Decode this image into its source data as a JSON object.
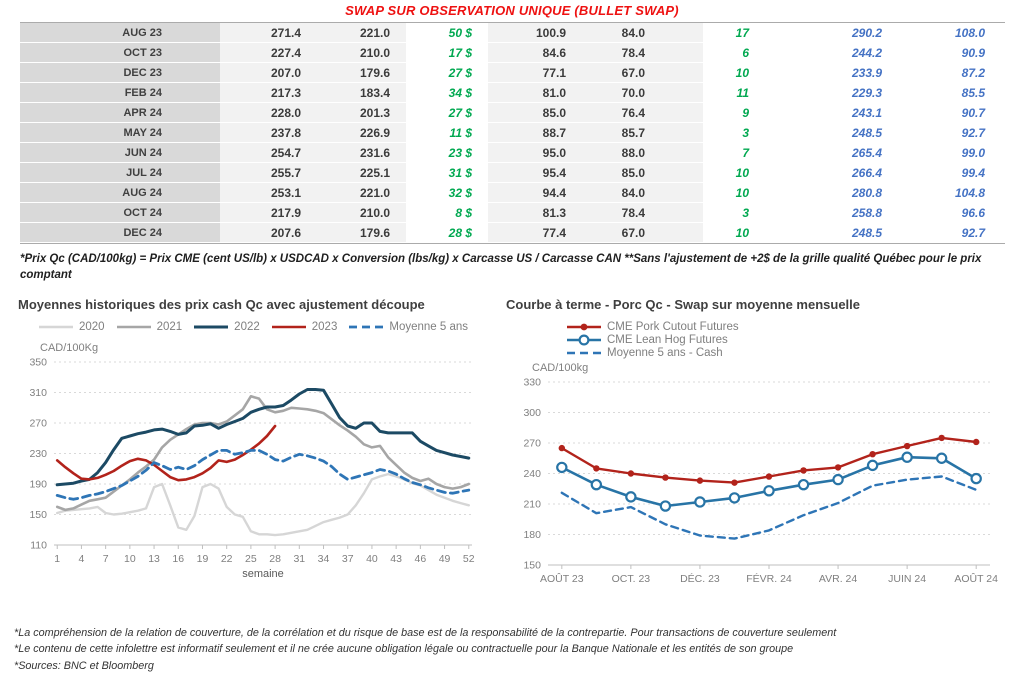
{
  "page": {
    "title": "SWAP SUR OBSERVATION UNIQUE (BULLET SWAP)",
    "table_note": "*Prix Qc (CAD/100kg) = Prix CME (cent US/lb) x USDCAD x Conversion (lbs/kg) x Carcasse US / Carcasse CAN **Sans l'ajustement de +2$ de la grille qualité Québec pour le prix comptant",
    "footer_lines": [
      "*La compréhension de la relation de couverture, de la corrélation et du risque de base est de la responsabilité de la contrepartie. Pour transactions de couverture seulement",
      "*Le contenu de cette infolettre est informatif seulement et il ne crée aucune obligation légale ou contractuelle pour la Banque Nationale et les entités de son groupe",
      "*Sources: BNC et Bloomberg"
    ]
  },
  "colors": {
    "title_red": "#ee1111",
    "table_green": "#00a850",
    "table_blue": "#4472c4",
    "month_band_gray": "#d9d9d9",
    "value_band_gray": "#f2f2f2"
  },
  "table": {
    "rows": [
      [
        "AUG 23",
        "271.4",
        "221.0",
        "50 $",
        "100.9",
        "84.0",
        "17",
        "290.2",
        "108.0"
      ],
      [
        "OCT 23",
        "227.4",
        "210.0",
        "17 $",
        "84.6",
        "78.4",
        "6",
        "244.2",
        "90.9"
      ],
      [
        "DEC 23",
        "207.0",
        "179.6",
        "27 $",
        "77.1",
        "67.0",
        "10",
        "233.9",
        "87.2"
      ],
      [
        "FEB 24",
        "217.3",
        "183.4",
        "34 $",
        "81.0",
        "70.0",
        "11",
        "229.3",
        "85.5"
      ],
      [
        "APR 24",
        "228.0",
        "201.3",
        "27 $",
        "85.0",
        "76.4",
        "9",
        "243.1",
        "90.7"
      ],
      [
        "MAY 24",
        "237.8",
        "226.9",
        "11 $",
        "88.7",
        "85.7",
        "3",
        "248.5",
        "92.7"
      ],
      [
        "JUN 24",
        "254.7",
        "231.6",
        "23 $",
        "95.0",
        "88.0",
        "7",
        "265.4",
        "99.0"
      ],
      [
        "JUL 24",
        "255.7",
        "225.1",
        "31 $",
        "95.4",
        "85.0",
        "10",
        "266.4",
        "99.4"
      ],
      [
        "AUG 24",
        "253.1",
        "221.0",
        "32 $",
        "94.4",
        "84.0",
        "10",
        "280.8",
        "104.8"
      ],
      [
        "OCT 24",
        "217.9",
        "210.0",
        "8 $",
        "81.3",
        "78.4",
        "3",
        "258.8",
        "96.6"
      ],
      [
        "DEC 24",
        "207.6",
        "179.6",
        "28 $",
        "77.4",
        "67.0",
        "10",
        "248.5",
        "92.7"
      ]
    ]
  },
  "chart_data": [
    {
      "type": "line",
      "title": "Moyennes historiques des prix cash Qc avec ajustement découpe",
      "unit_label": "CAD/100Kg",
      "xlabel": "semaine",
      "ylim": [
        110,
        350
      ],
      "yticks": [
        110,
        150,
        190,
        230,
        270,
        310,
        350
      ],
      "xlim": [
        0.6,
        52.4
      ],
      "x_start": 1,
      "xticks": [
        1,
        4,
        7,
        10,
        13,
        16,
        19,
        22,
        25,
        28,
        31,
        34,
        37,
        40,
        43,
        46,
        49,
        52
      ],
      "grid": "horizontal-dashed",
      "legend_position": "top",
      "series": [
        {
          "name": "2020",
          "color": "#d6d6d6",
          "width": 2.4,
          "values": [
            152,
            155,
            156,
            157,
            158,
            160,
            152,
            150,
            151,
            153,
            155,
            158,
            186,
            190,
            162,
            133,
            130,
            148,
            186,
            190,
            184,
            160,
            150,
            147,
            128,
            124,
            124,
            123,
            124,
            126,
            128,
            130,
            135,
            140,
            143,
            146,
            150,
            162,
            178,
            196,
            200,
            203,
            200,
            196,
            191,
            188,
            182,
            176,
            172,
            168,
            165,
            162
          ]
        },
        {
          "name": "2021",
          "color": "#a6a6a6",
          "width": 2.6,
          "values": [
            160,
            156,
            158,
            163,
            168,
            170,
            172,
            180,
            188,
            196,
            205,
            213,
            222,
            238,
            248,
            255,
            262,
            268,
            270,
            270,
            268,
            272,
            280,
            288,
            305,
            302,
            288,
            284,
            286,
            290,
            289,
            288,
            286,
            283,
            275,
            267,
            260,
            252,
            242,
            238,
            240,
            225,
            215,
            205,
            198,
            194,
            197,
            190,
            186,
            184,
            186,
            190
          ]
        },
        {
          "name": "2022",
          "color": "#1c4a64",
          "width": 3,
          "values": [
            189,
            190,
            191,
            194,
            196,
            205,
            218,
            235,
            250,
            253,
            256,
            258,
            261,
            262,
            259,
            255,
            257,
            266,
            267,
            269,
            263,
            268,
            272,
            276,
            284,
            288,
            291,
            291,
            293,
            300,
            308,
            314,
            314,
            313,
            295,
            277,
            266,
            263,
            270,
            270,
            259,
            257,
            257,
            257,
            257,
            246,
            240,
            234,
            231,
            228,
            226,
            224
          ]
        },
        {
          "name": "2023",
          "color": "#b2231b",
          "width": 2.6,
          "values": [
            221,
            212,
            204,
            197,
            196,
            198,
            202,
            207,
            214,
            220,
            223,
            221,
            215,
            207,
            199,
            195,
            196,
            199,
            204,
            211,
            221,
            219,
            222,
            228,
            235,
            243,
            253,
            266
          ]
        },
        {
          "name": "Moyenne 5 ans",
          "color": "#2e75b6",
          "width": 2.8,
          "dash": "8 5",
          "values": [
            175,
            172,
            170,
            172,
            175,
            177,
            180,
            184,
            188,
            194,
            200,
            208,
            218,
            214,
            209,
            212,
            209,
            214,
            222,
            228,
            234,
            234,
            229,
            231,
            234,
            234,
            229,
            222,
            220,
            225,
            229,
            227,
            224,
            220,
            213,
            203,
            196,
            199,
            202,
            205,
            209,
            207,
            203,
            197,
            192,
            189,
            185,
            182,
            179,
            178,
            180,
            182
          ]
        }
      ]
    },
    {
      "type": "line",
      "title": "Courbe à terme - Porc Qc - Swap sur moyenne mensuelle",
      "unit_label": "CAD/100kg",
      "xlabel": "",
      "ylim": [
        150,
        330
      ],
      "yticks": [
        150,
        180,
        210,
        240,
        270,
        300,
        330
      ],
      "xlim": [
        -0.4,
        12.4
      ],
      "x_start": 0,
      "xticks": [
        {
          "x": 0,
          "label": "AOÛT 23"
        },
        {
          "x": 2,
          "label": "OCT. 23"
        },
        {
          "x": 4,
          "label": "DÉC. 23"
        },
        {
          "x": 6,
          "label": "FÉVR. 24"
        },
        {
          "x": 8,
          "label": "AVR. 24"
        },
        {
          "x": 10,
          "label": "JUIN 24"
        },
        {
          "x": 12,
          "label": "AOÛT 24"
        }
      ],
      "grid": "horizontal-dashed",
      "legend_position": "top",
      "series": [
        {
          "name": "Moyenne 5 ans - Cash",
          "color": "#2e75b6",
          "width": 2.4,
          "dash": "7 5",
          "legend_order": 3,
          "values": [
            221,
            201,
            207,
            190,
            179,
            176,
            184,
            199,
            211,
            228,
            234,
            237,
            224
          ]
        },
        {
          "name": "CME Lean Hog Futures",
          "color": "#2874a6",
          "width": 2.6,
          "marker": "open-circle",
          "legend_order": 2,
          "values": [
            246,
            229,
            217,
            208,
            212,
            216,
            223,
            229,
            234,
            248,
            256,
            255,
            235
          ]
        },
        {
          "name": "CME Pork Cutout Futures",
          "color": "#b2231b",
          "width": 2.4,
          "marker": "dot",
          "legend_order": 1,
          "values": [
            265,
            245,
            240,
            236,
            233,
            231,
            237,
            243,
            246,
            259,
            267,
            275,
            271
          ]
        }
      ]
    }
  ]
}
